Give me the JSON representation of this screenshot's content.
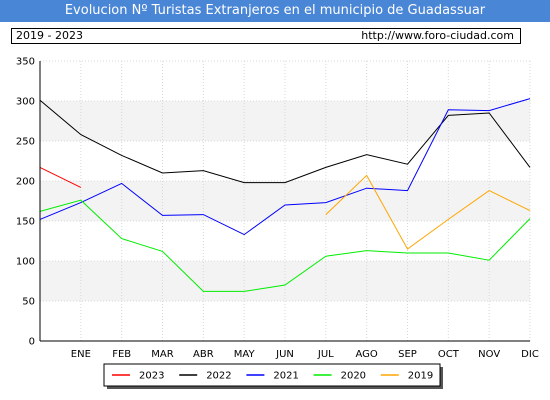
{
  "title": "Evolucion Nº Turistas Extranjeros en el municipio de Guadassuar",
  "info": {
    "range": "2019 - 2023",
    "url": "http://www.foro-ciudad.com"
  },
  "colors": {
    "title_bg": "#4a86d6",
    "grid": "#d8d8d8",
    "band": "#f3f3f3"
  },
  "chart_data": {
    "type": "line",
    "categories": [
      "ENE",
      "FEB",
      "MAR",
      "ABR",
      "MAY",
      "JUN",
      "JUL",
      "AGO",
      "SEP",
      "OCT",
      "NOV",
      "DIC"
    ],
    "ylim": [
      0,
      350
    ],
    "yticks": [
      0,
      50,
      100,
      150,
      200,
      250,
      300,
      350
    ],
    "grid": true,
    "legend_position": "bottom",
    "series": [
      {
        "name": "2023",
        "color": "#ff0000",
        "x": [
          0,
          1
        ],
        "values": [
          217,
          192
        ]
      },
      {
        "name": "2022",
        "color": "#000000",
        "x": [
          0,
          1,
          2,
          3,
          4,
          5,
          6,
          7,
          8,
          9,
          10,
          11,
          12
        ],
        "values": [
          301,
          258,
          232,
          210,
          213,
          198,
          198,
          217,
          233,
          221,
          282,
          285,
          217
        ]
      },
      {
        "name": "2021",
        "color": "#0000ff",
        "x": [
          0,
          1,
          2,
          3,
          4,
          5,
          6,
          7,
          8,
          9,
          10,
          11,
          12
        ],
        "values": [
          152,
          173,
          197,
          157,
          158,
          133,
          170,
          173,
          191,
          188,
          289,
          288,
          303
        ]
      },
      {
        "name": "2020",
        "color": "#00ee00",
        "x": [
          0,
          1,
          2,
          3,
          4,
          5,
          6,
          7,
          8,
          9,
          10,
          11,
          12
        ],
        "values": [
          162,
          176,
          128,
          112,
          62,
          62,
          70,
          106,
          113,
          110,
          110,
          101,
          153
        ]
      },
      {
        "name": "2019",
        "color": "#ffa500",
        "x": [
          7,
          8,
          9,
          10,
          11,
          12
        ],
        "values": [
          158,
          207,
          115,
          152,
          188,
          163
        ]
      }
    ]
  }
}
